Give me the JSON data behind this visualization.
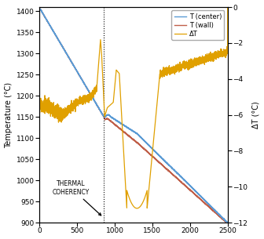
{
  "title": "",
  "xlabel": "",
  "ylabel_left": "Temperature (°C)",
  "ylabel_right": "ΔT (°C)",
  "xlim": [
    0,
    2500
  ],
  "ylim_left": [
    900,
    1410
  ],
  "ylim_right": [
    -12,
    0
  ],
  "yticks_left": [
    900,
    950,
    1000,
    1050,
    1100,
    1150,
    1200,
    1250,
    1300,
    1350,
    1400
  ],
  "yticks_right": [
    -12,
    -10,
    -8,
    -6,
    -4,
    -2,
    0
  ],
  "xticks": [
    0,
    500,
    1000,
    1500,
    2000,
    2500
  ],
  "coherency_x": 850,
  "coherency_label": "THERMAL\nCOHERENCY",
  "legend_labels": [
    "T (center)",
    "T (wall)",
    "ΔT"
  ],
  "color_center": "#5b9bd5",
  "color_wall": "#c0604a",
  "color_delta": "#e0a000",
  "background_color": "#ffffff"
}
